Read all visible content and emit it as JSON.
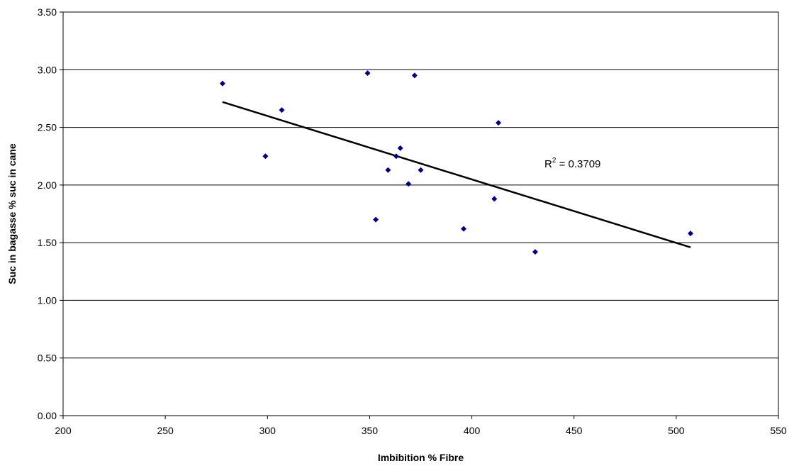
{
  "chart_data": {
    "type": "scatter",
    "xlabel": "Imbibition % Fibre",
    "ylabel": "Suc in bagasse % suc in cane",
    "xlim": [
      200,
      550
    ],
    "ylim": [
      0,
      3.5
    ],
    "x_ticks": [
      "200",
      "250",
      "300",
      "350",
      "400",
      "450",
      "500",
      "550"
    ],
    "y_ticks": [
      "0.00",
      "0.50",
      "1.00",
      "1.50",
      "2.00",
      "2.50",
      "3.00",
      "3.50"
    ],
    "grid": "horizontal",
    "legend": "none",
    "series": [
      {
        "points": [
          {
            "x": 278,
            "y": 2.88
          },
          {
            "x": 299,
            "y": 2.25
          },
          {
            "x": 307,
            "y": 2.65
          },
          {
            "x": 349,
            "y": 2.97
          },
          {
            "x": 353,
            "y": 1.7
          },
          {
            "x": 359,
            "y": 2.13
          },
          {
            "x": 363,
            "y": 2.25
          },
          {
            "x": 365,
            "y": 2.32
          },
          {
            "x": 369,
            "y": 2.01
          },
          {
            "x": 372,
            "y": 2.95
          },
          {
            "x": 375,
            "y": 2.13
          },
          {
            "x": 396,
            "y": 1.62
          },
          {
            "x": 411,
            "y": 1.88
          },
          {
            "x": 413,
            "y": 2.54
          },
          {
            "x": 431,
            "y": 1.42
          },
          {
            "x": 507,
            "y": 1.58
          }
        ]
      }
    ],
    "trendline": {
      "type": "linear",
      "start": {
        "x": 278,
        "y": 2.72
      },
      "end": {
        "x": 507,
        "y": 1.46
      }
    },
    "annotation": {
      "r_label": "R",
      "r_superscript": "2",
      "r_value": " = 0.3709"
    },
    "colors": {
      "marker": "#000080",
      "trendline": "#000000",
      "gridline": "#000000",
      "background": "#ffffff"
    }
  }
}
